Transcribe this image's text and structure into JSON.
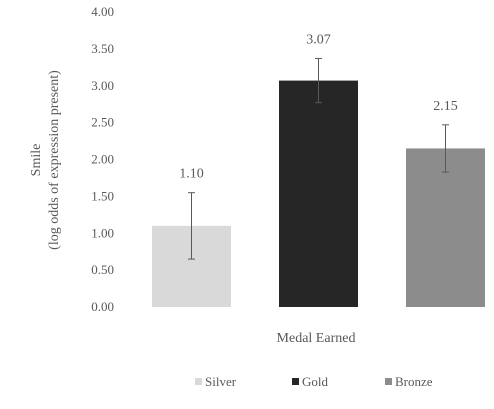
{
  "chart_data": {
    "type": "bar",
    "categories": [
      "Silver",
      "Gold",
      "Bronze"
    ],
    "values": [
      1.1,
      3.07,
      2.15
    ],
    "data_labels": [
      "1.10",
      "3.07",
      "2.15"
    ],
    "error_bars": [
      {
        "low": 0.65,
        "high": 1.55
      },
      {
        "low": 2.77,
        "high": 3.37
      },
      {
        "low": 1.83,
        "high": 2.47
      }
    ],
    "colors": [
      "#d9d9d9",
      "#262626",
      "#8c8c8c"
    ],
    "title": "",
    "xlabel": "Medal Earned",
    "ylabel_lines": [
      "Smile",
      "(log odds of expression present)"
    ],
    "ylim": [
      0,
      4
    ],
    "yticks": [
      "0.00",
      "0.50",
      "1.00",
      "1.50",
      "2.00",
      "2.50",
      "3.00",
      "3.50",
      "4.00"
    ],
    "grid": false,
    "legend": {
      "placement": "bottom",
      "entries": [
        "Silver",
        "Gold",
        "Bronze"
      ]
    }
  }
}
